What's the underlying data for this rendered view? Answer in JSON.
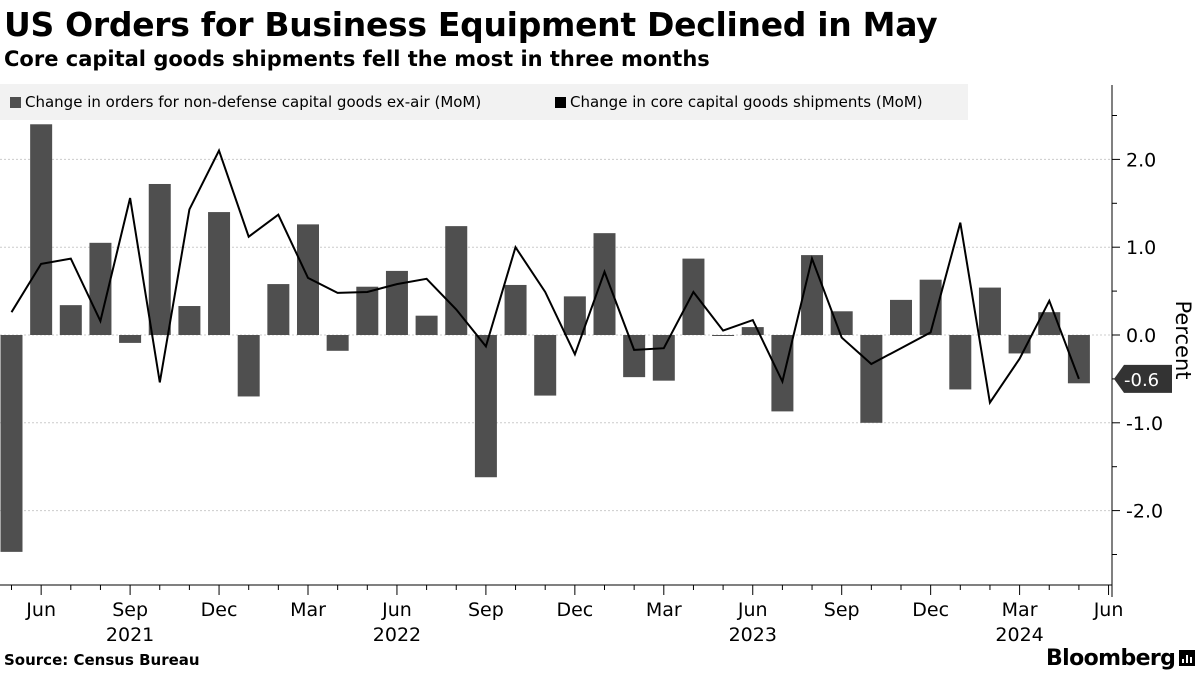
{
  "title": "US Orders for Business Equipment Declined in May",
  "subtitle": "Core capital goods shipments fell the most in three months",
  "legend": {
    "orders_label": "Change in orders for non-defense capital goods ex-air (MoM)",
    "shipments_label": "Change in core capital goods shipments (MoM)"
  },
  "source": "Source: Census Bureau",
  "brand": "Bloomberg",
  "colors": {
    "bars": "#4f4f4f",
    "line": "#000000",
    "grid": "#cccccc",
    "legend_bg": "#f2f2f2"
  },
  "chart_data": {
    "type": "bar+line",
    "title": "US Orders for Business Equipment Declined in May",
    "xlabel": "",
    "ylabel": "Percent",
    "ylim": [
      -2.7,
      2.9
    ],
    "yticks": [
      2.0,
      1.0,
      0.0,
      -1.0,
      -2.0
    ],
    "ytick_labels": [
      "2.0",
      "1.0",
      "0.0",
      "-1.0",
      "-2.0"
    ],
    "grid": true,
    "months": [
      "May 2021",
      "Jun 2021",
      "Jul 2021",
      "Aug 2021",
      "Sep 2021",
      "Oct 2021",
      "Nov 2021",
      "Dec 2021",
      "Jan 2022",
      "Feb 2022",
      "Mar 2022",
      "Apr 2022",
      "May 2022",
      "Jun 2022",
      "Jul 2022",
      "Aug 2022",
      "Sep 2022",
      "Oct 2022",
      "Nov 2022",
      "Dec 2022",
      "Jan 2023",
      "Feb 2023",
      "Mar 2023",
      "Apr 2023",
      "May 2023",
      "Jun 2023",
      "Jul 2023",
      "Aug 2023",
      "Sep 2023",
      "Oct 2023",
      "Nov 2023",
      "Dec 2023",
      "Jan 2024",
      "Feb 2024",
      "Mar 2024",
      "Apr 2024",
      "May 2024"
    ],
    "x_tick_labels": [
      {
        "label": "Jun",
        "index": 1
      },
      {
        "label": "Sep",
        "index": 4
      },
      {
        "label": "Dec",
        "index": 7
      },
      {
        "label": "Mar",
        "index": 10
      },
      {
        "label": "Jun",
        "index": 13
      },
      {
        "label": "Sep",
        "index": 16
      },
      {
        "label": "Dec",
        "index": 19
      },
      {
        "label": "Mar",
        "index": 22
      },
      {
        "label": "Jun",
        "index": 25
      },
      {
        "label": "Sep",
        "index": 28
      },
      {
        "label": "Dec",
        "index": 31
      },
      {
        "label": "Mar",
        "index": 34
      },
      {
        "label": "Jun",
        "index": 37
      }
    ],
    "year_labels": [
      {
        "label": "2021",
        "index": 4
      },
      {
        "label": "2022",
        "index": 13
      },
      {
        "label": "2023",
        "index": 25
      },
      {
        "label": "2024",
        "index": 34
      }
    ],
    "series": [
      {
        "name": "Change in orders for non-defense capital goods ex-air (MoM)",
        "kind": "bar",
        "values": [
          -2.47,
          2.4,
          0.34,
          1.05,
          -0.09,
          1.72,
          0.33,
          1.4,
          -0.7,
          0.58,
          1.26,
          -0.18,
          0.55,
          0.73,
          0.22,
          1.24,
          -1.62,
          0.57,
          -0.69,
          0.44,
          1.16,
          -0.48,
          -0.52,
          0.87,
          -0.01,
          0.09,
          -0.87,
          0.91,
          0.27,
          -1.0,
          0.4,
          0.63,
          -0.62,
          0.54,
          -0.21,
          0.26,
          -0.55
        ]
      },
      {
        "name": "Change in core capital goods shipments (MoM)",
        "kind": "line",
        "values": [
          0.26,
          0.81,
          0.87,
          0.16,
          1.56,
          -0.54,
          1.43,
          2.1,
          1.12,
          1.37,
          0.65,
          0.48,
          0.49,
          0.58,
          0.64,
          0.29,
          -0.13,
          1.0,
          0.49,
          -0.22,
          0.72,
          -0.17,
          -0.15,
          0.49,
          0.05,
          0.17,
          -0.53,
          0.87,
          -0.03,
          -0.33,
          -0.15,
          0.03,
          1.28,
          -0.77,
          -0.27,
          0.39,
          -0.5
        ]
      }
    ],
    "last_value_label": "-0.6"
  }
}
